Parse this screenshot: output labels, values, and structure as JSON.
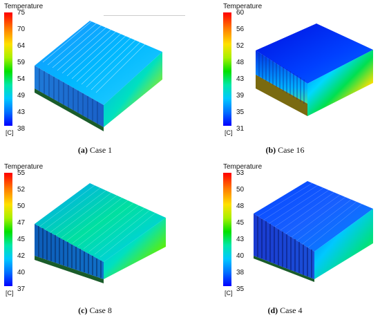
{
  "panels": [
    {
      "title": "Temperature",
      "ticks": [
        "75",
        "70",
        "64",
        "59",
        "54",
        "49",
        "43",
        "38"
      ],
      "unit": "[C]",
      "caption_label": "(a)",
      "caption_text": " Case 1"
    },
    {
      "title": "Temperature",
      "ticks": [
        "60",
        "56",
        "52",
        "48",
        "43",
        "39",
        "35",
        "31"
      ],
      "unit": "[C]",
      "caption_label": "(b)",
      "caption_text": " Case 16"
    },
    {
      "title": "Temperature",
      "ticks": [
        "55",
        "52",
        "50",
        "47",
        "45",
        "42",
        "40",
        "37"
      ],
      "unit": "[C]",
      "caption_label": "(c)",
      "caption_text": " Case 8"
    },
    {
      "title": "Temperature",
      "ticks": [
        "53",
        "50",
        "48",
        "45",
        "43",
        "40",
        "38",
        "35"
      ],
      "unit": "[C]",
      "caption_label": "(d)",
      "caption_text": " Case 4"
    }
  ]
}
